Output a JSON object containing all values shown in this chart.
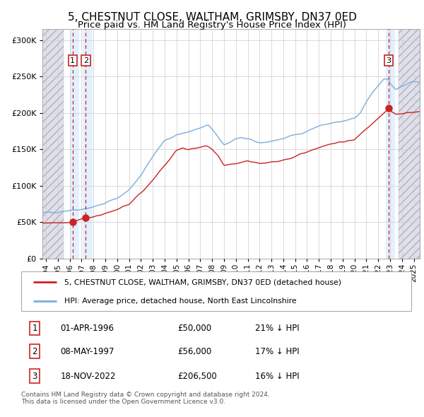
{
  "title": "5, CHESTNUT CLOSE, WALTHAM, GRIMSBY, DN37 0ED",
  "subtitle": "Price paid vs. HM Land Registry's House Price Index (HPI)",
  "title_fontsize": 11,
  "subtitle_fontsize": 9.5,
  "ytick_vals": [
    0,
    50000,
    100000,
    150000,
    200000,
    250000,
    300000
  ],
  "ylim": [
    0,
    315000
  ],
  "xlim_start": 1993.7,
  "xlim_end": 2025.5,
  "hpi_color": "#7aaddd",
  "property_color": "#cc2222",
  "hatch_color": "#e0e0ea",
  "sale_marker_color": "#cc2222",
  "sale_dashed_color": "#cc2222",
  "sale_shade_color": "#ddeeff",
  "grid_color": "#cccccc",
  "legend_property": "5, CHESTNUT CLOSE, WALTHAM, GRIMSBY, DN37 0ED (detached house)",
  "legend_hpi": "HPI: Average price, detached house, North East Lincolnshire",
  "sale1_date": 1996.25,
  "sale1_price": 50000,
  "sale1_label": "1",
  "sale2_date": 1997.35,
  "sale2_price": 56000,
  "sale2_label": "2",
  "sale3_date": 2022.88,
  "sale3_price": 206500,
  "sale3_label": "3",
  "hatch_left_end": 1995.5,
  "hatch_right_start": 2023.7,
  "table_rows": [
    {
      "num": "1",
      "date": "01-APR-1996",
      "price": "£50,000",
      "note": "21% ↓ HPI"
    },
    {
      "num": "2",
      "date": "08-MAY-1997",
      "price": "£56,000",
      "note": "17% ↓ HPI"
    },
    {
      "num": "3",
      "date": "18-NOV-2022",
      "price": "£206,500",
      "note": "16% ↓ HPI"
    }
  ],
  "footer": "Contains HM Land Registry data © Crown copyright and database right 2024.\nThis data is licensed under the Open Government Licence v3.0."
}
